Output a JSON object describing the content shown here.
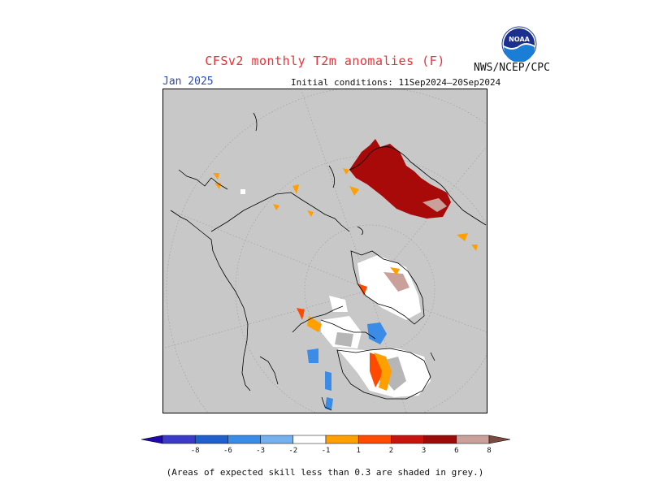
{
  "header": {
    "title": "CFSv2 monthly T2m anomalies (F)",
    "month": "Jan 2025",
    "initial_conditions": "Initial conditions: 11Sep2024–20Sep2024",
    "agency": "NWS/NCEP/CPC",
    "logo_text": "NOAA"
  },
  "legend": {
    "labels": [
      "-8",
      "-6",
      "-3",
      "-2",
      "-1",
      "1",
      "2",
      "3",
      "6",
      "8"
    ],
    "colors": [
      "#1d0aa8",
      "#3b3bc8",
      "#1f5fd0",
      "#3a8ce6",
      "#74b0ee",
      "#ffffff",
      "#ff9f00",
      "#ff4a00",
      "#c8140f",
      "#9c0a0a",
      "#c9a09a",
      "#7c4a3e"
    ]
  },
  "map": {
    "background_color": "#c8c8c8",
    "no_anomaly_color": "#ffffff"
  },
  "footer": {
    "note": "(Areas of expected skill less than 0.3 are shaded in grey.)"
  }
}
